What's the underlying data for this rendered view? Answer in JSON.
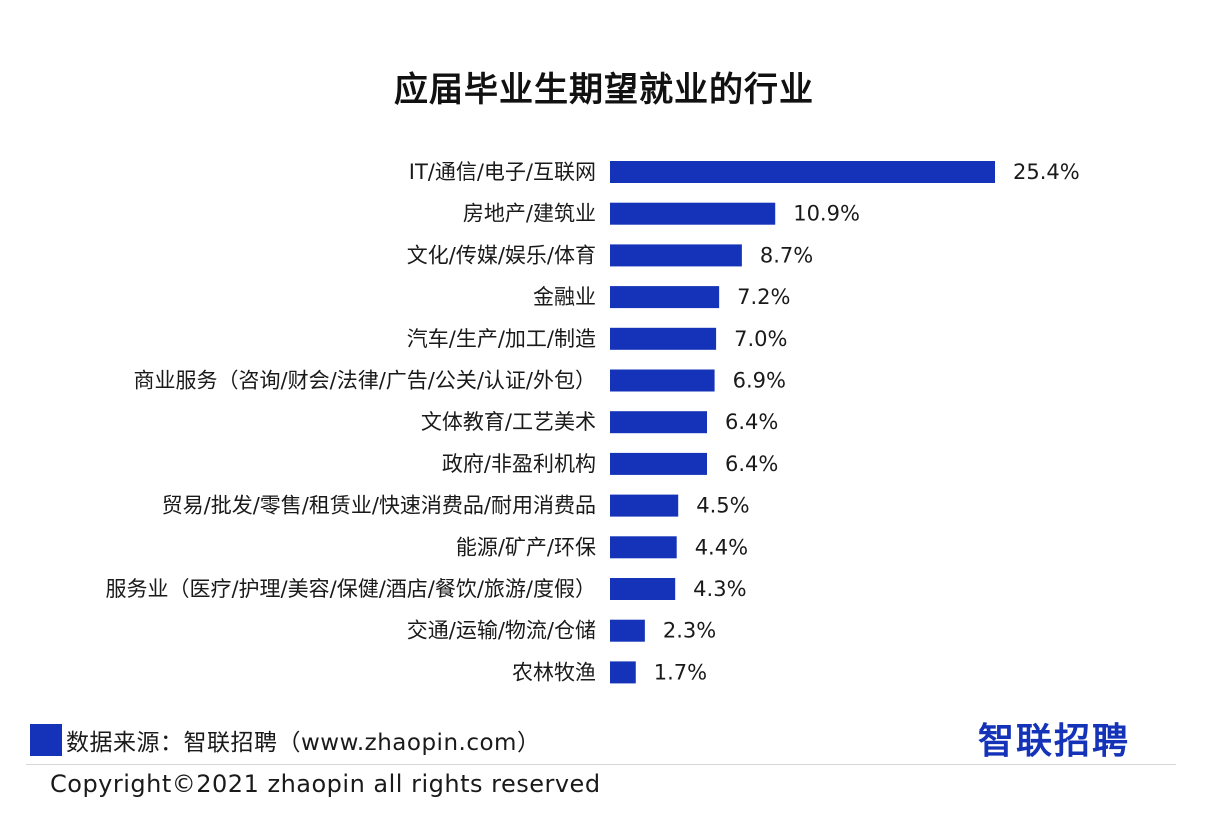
{
  "chart_data": {
    "type": "bar",
    "orientation": "horizontal",
    "title": "应届毕业生期望就业的行业",
    "categories": [
      "IT/通信/电子/互联网",
      "房地产/建筑业",
      "文化/传媒/娱乐/体育",
      "金融业",
      "汽车/生产/加工/制造",
      "商业服务（咨询/财会/法律/广告/公关/认证/外包）",
      "文体教育/工艺美术",
      "政府/非盈利机构",
      "贸易/批发/零售/租赁业/快速消费品/耐用消费品",
      "能源/矿产/环保",
      "服务业（医疗/护理/美容/保健/酒店/餐饮/旅游/度假）",
      "交通/运输/物流/仓储",
      "农林牧渔"
    ],
    "values": [
      25.4,
      10.9,
      8.7,
      7.2,
      7.0,
      6.9,
      6.4,
      6.4,
      4.5,
      4.4,
      4.3,
      2.3,
      1.7
    ],
    "value_labels": [
      "25.4%",
      "10.9%",
      "8.7%",
      "7.2%",
      "7.0%",
      "6.9%",
      "6.4%",
      "6.4%",
      "4.5%",
      "4.4%",
      "4.3%",
      "2.3%",
      "1.7%"
    ],
    "xlim": [
      0,
      25.4
    ],
    "grid": false,
    "bar_color": "#1433b8"
  },
  "legend": {
    "source_text": "数据来源：智联招聘（www.zhaopin.com）"
  },
  "logo_text": "智联招聘",
  "copyright": "Copyright©2021 zhaopin all rights reserved"
}
